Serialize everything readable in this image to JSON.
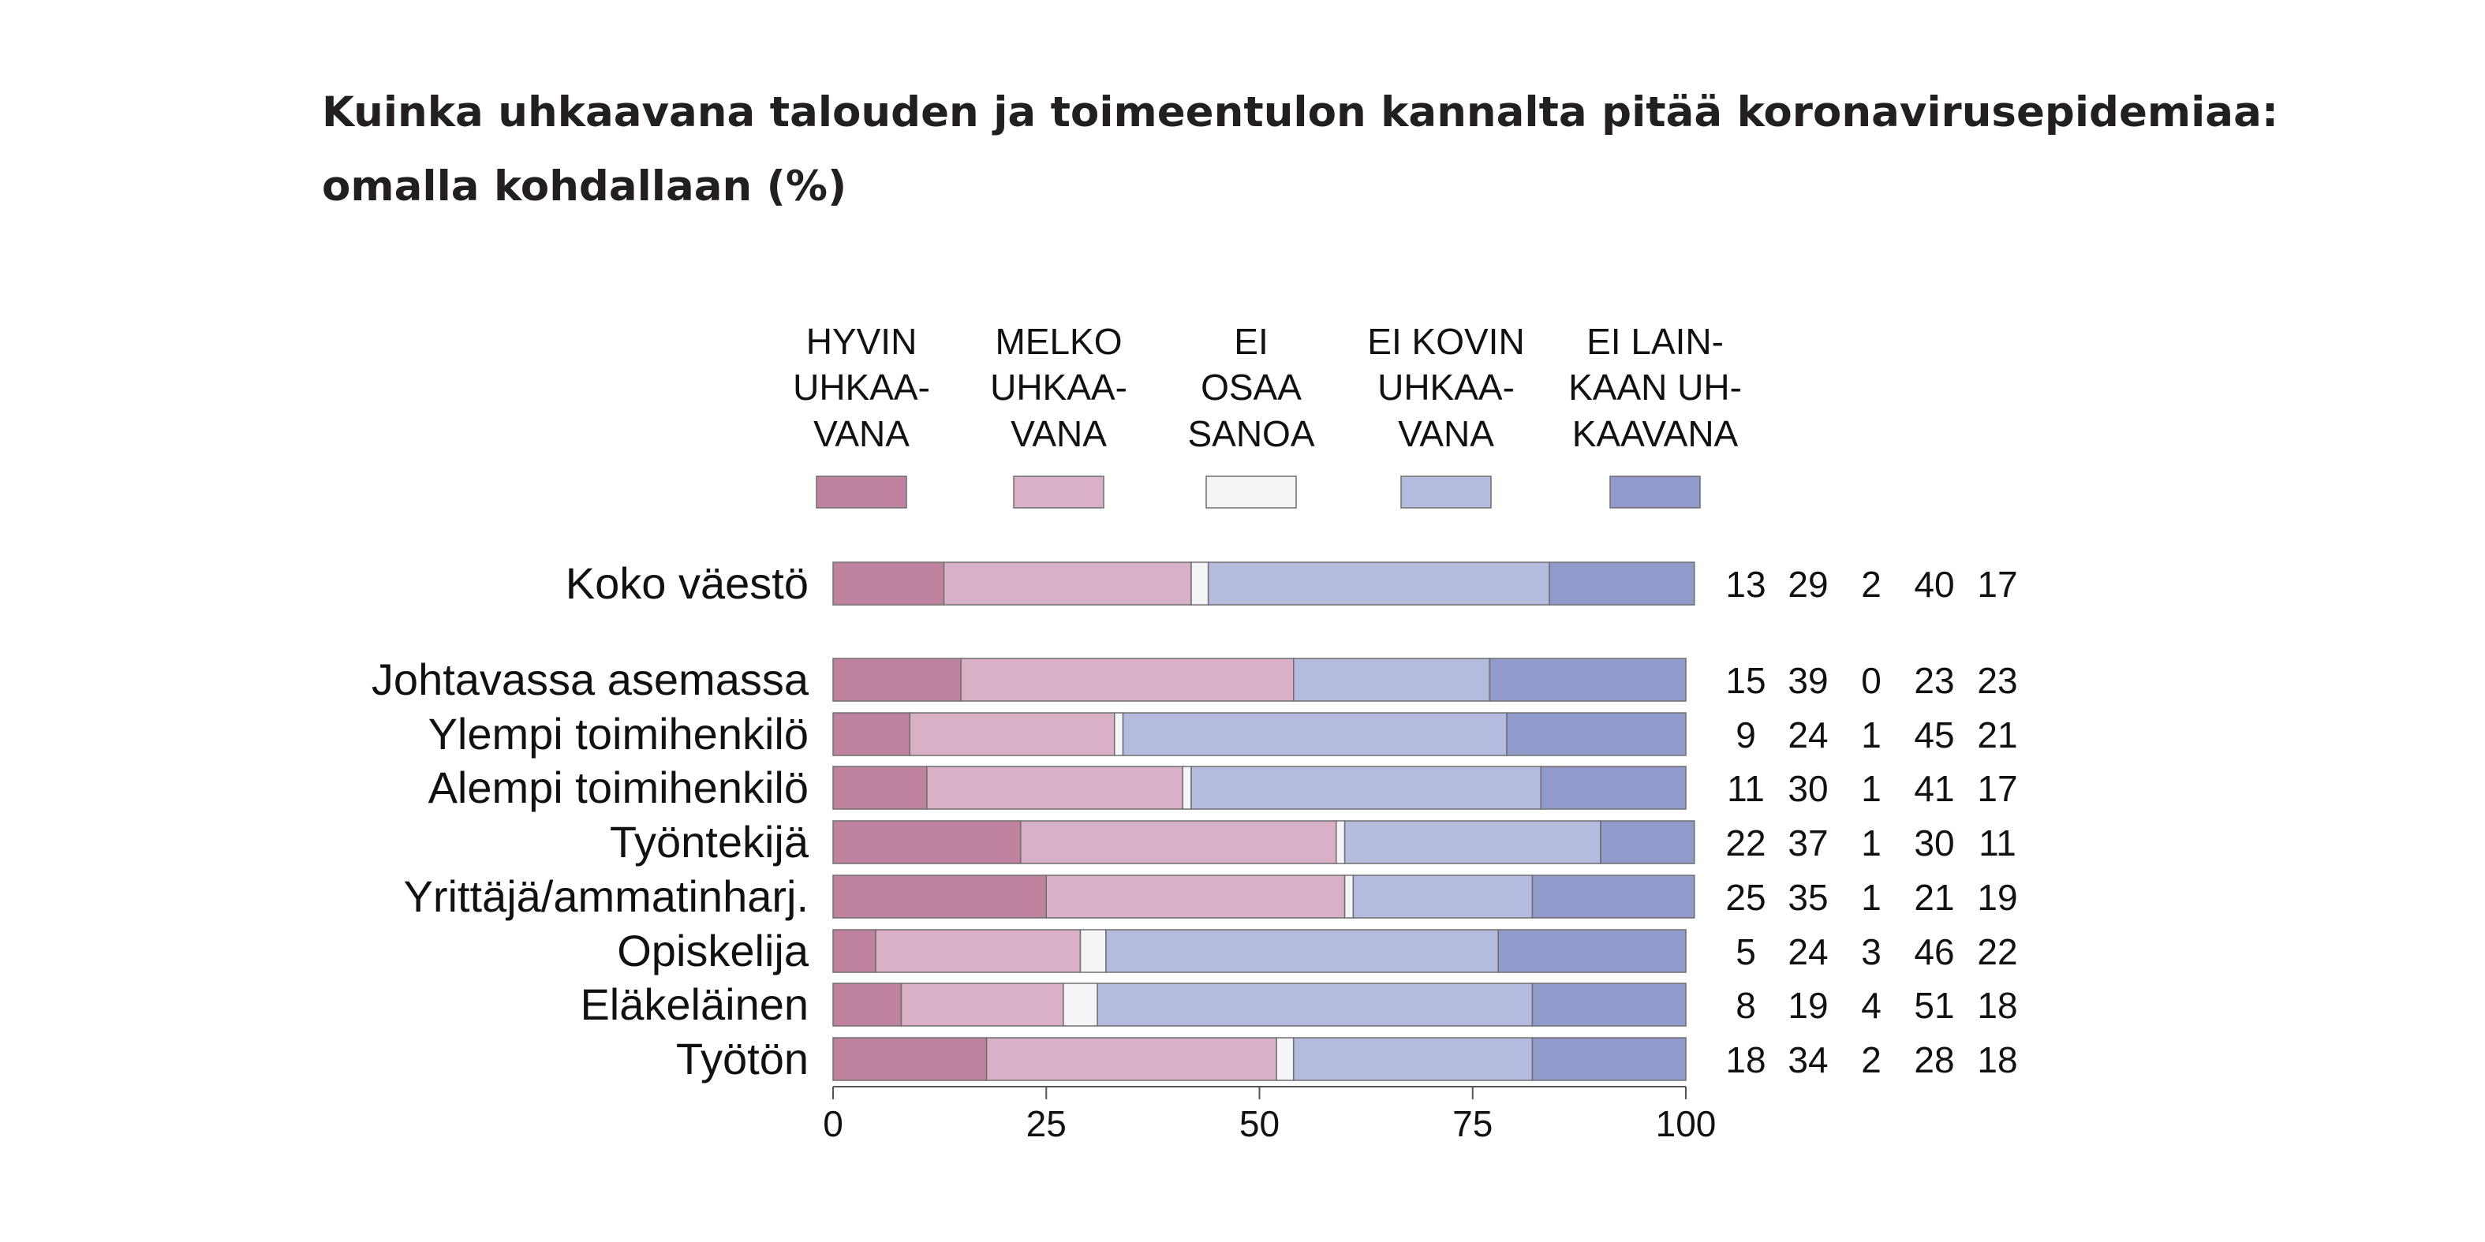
{
  "chart_data": {
    "type": "bar",
    "stacked": true,
    "orientation": "horizontal",
    "title": "Kuinka uhkaavana talouden ja toimeentulon kannalta pitää koronavirusepidemiaa:",
    "subtitle": "omalla kohdallaan (%)",
    "xlim": [
      0,
      100
    ],
    "x_ticks": [
      "0",
      "25",
      "50",
      "75",
      "100"
    ],
    "grid": false,
    "legend_position": "top",
    "categories": [
      "Koko väestö",
      "Johtavassa asemassa",
      "Ylempi toimihenkilö",
      "Alempi toimihenkilö",
      "Työntekijä",
      "Yrittäjä/ammatinharj.",
      "Opiskelija",
      "Eläkeläinen",
      "Työtön"
    ],
    "series": [
      {
        "name": "HYVIN UHKAAVANA",
        "legend_lines": [
          "HYVIN",
          "UHKAA-",
          "VANA"
        ],
        "color": "#c0839f",
        "values": [
          13,
          15,
          9,
          11,
          22,
          25,
          5,
          8,
          18
        ]
      },
      {
        "name": "MELKO UHKAAVANA",
        "legend_lines": [
          "MELKO",
          "UHKAA-",
          "VANA"
        ],
        "color": "#d9b0c5",
        "values": [
          29,
          39,
          24,
          30,
          37,
          35,
          24,
          19,
          34
        ]
      },
      {
        "name": "EI OSAA SANOA",
        "legend_lines": [
          "EI",
          "OSAA",
          "SANOA"
        ],
        "color": "#f4f5f7",
        "values": [
          2,
          0,
          1,
          1,
          1,
          1,
          3,
          4,
          2
        ]
      },
      {
        "name": "EI KOVIN UHKAAVANA",
        "legend_lines": [
          "EI KOVIN",
          "UHKAA-",
          "VANA"
        ],
        "color": "#b5bbdf",
        "values": [
          40,
          23,
          45,
          41,
          30,
          21,
          46,
          51,
          28
        ]
      },
      {
        "name": "EI LAINKAAN UHKAAVANA",
        "legend_lines": [
          "EI LAIN-",
          "KAAN UH-",
          "KAAVANA"
        ],
        "color": "#909bcb",
        "values": [
          17,
          23,
          21,
          17,
          11,
          19,
          22,
          18,
          18
        ]
      }
    ]
  }
}
